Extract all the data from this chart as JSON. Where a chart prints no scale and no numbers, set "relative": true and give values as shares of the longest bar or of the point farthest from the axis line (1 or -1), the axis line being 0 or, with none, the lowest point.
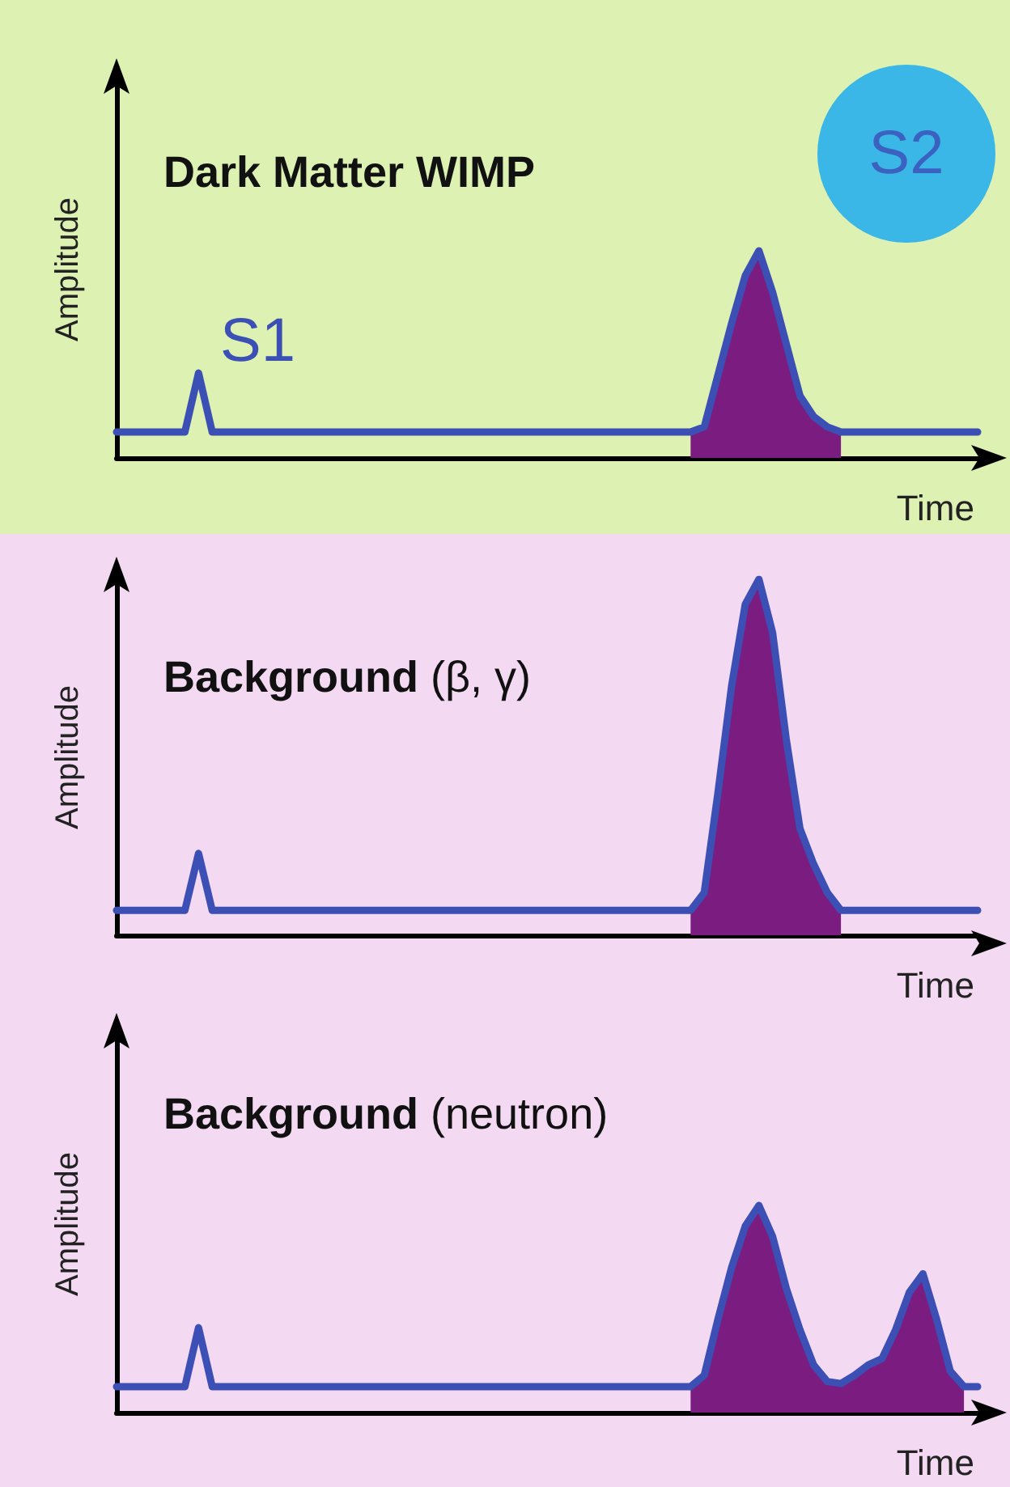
{
  "chart_data": [
    {
      "type": "line",
      "relative": true,
      "title": "Dark Matter WIMP",
      "xlabel": "Time",
      "ylabel": "Amplitude",
      "annotations": [
        "S1",
        "S2"
      ],
      "categories": [
        null,
        null,
        null,
        null,
        null,
        null,
        null,
        null,
        null,
        null,
        null,
        null,
        null,
        null,
        null,
        null,
        null,
        null,
        null,
        null,
        null,
        null,
        null,
        null,
        null,
        null,
        null,
        null,
        null,
        null,
        null,
        null,
        null,
        null,
        null,
        null,
        null,
        null,
        null,
        null,
        null,
        null,
        null,
        null,
        null,
        null,
        null,
        null,
        null,
        null,
        null,
        null,
        null,
        null,
        null,
        null,
        null,
        null,
        null,
        null,
        null,
        null,
        null,
        null
      ],
      "series": [
        {
          "type": "area",
          "color": "#7b1d80",
          "values": [
            null,
            null,
            null,
            null,
            null,
            null,
            null,
            null,
            null,
            null,
            null,
            null,
            null,
            null,
            null,
            null,
            null,
            null,
            null,
            null,
            null,
            null,
            null,
            null,
            null,
            null,
            null,
            null,
            null,
            null,
            null,
            null,
            null,
            null,
            null,
            null,
            null,
            null,
            null,
            null,
            null,
            null,
            0.125,
            0.15,
            0.4,
            0.65,
            0.88,
            1,
            0.8,
            0.55,
            0.3,
            0.2,
            0.15,
            0.125,
            null,
            null,
            null,
            null,
            null,
            null,
            null,
            null,
            null,
            null
          ]
        },
        {
          "color": "#3c4fb4",
          "values": [
            0.125,
            0.125,
            0.125,
            0.125,
            0.125,
            0.125,
            0.41,
            0.125,
            0.125,
            0.125,
            0.125,
            0.125,
            0.125,
            0.125,
            0.125,
            0.125,
            0.125,
            0.125,
            0.125,
            0.125,
            0.125,
            0.125,
            0.125,
            0.125,
            0.125,
            0.125,
            0.125,
            0.125,
            0.125,
            0.125,
            0.125,
            0.125,
            0.125,
            0.125,
            0.125,
            0.125,
            0.125,
            0.125,
            0.125,
            0.125,
            0.125,
            0.125,
            0.125,
            0.15,
            0.4,
            0.65,
            0.88,
            1,
            0.8,
            0.55,
            0.3,
            0.2,
            0.15,
            0.125,
            0.125,
            0.125,
            0.125,
            0.125,
            0.125,
            0.125,
            0.125,
            0.125,
            0.125,
            0.125
          ]
        }
      ]
    },
    {
      "type": "line",
      "relative": true,
      "title": "Background (β, γ)",
      "xlabel": "Time",
      "ylabel": "Amplitude",
      "categories": [
        null,
        null,
        null,
        null,
        null,
        null,
        null,
        null,
        null,
        null,
        null,
        null,
        null,
        null,
        null,
        null,
        null,
        null,
        null,
        null,
        null,
        null,
        null,
        null,
        null,
        null,
        null,
        null,
        null,
        null,
        null,
        null,
        null,
        null,
        null,
        null,
        null,
        null,
        null,
        null,
        null,
        null,
        null,
        null,
        null,
        null,
        null,
        null,
        null,
        null,
        null,
        null,
        null,
        null,
        null,
        null,
        null,
        null,
        null,
        null,
        null,
        null,
        null,
        null
      ],
      "series": [
        {
          "type": "area",
          "color": "#7b1d80",
          "values": [
            null,
            null,
            null,
            null,
            null,
            null,
            null,
            null,
            null,
            null,
            null,
            null,
            null,
            null,
            null,
            null,
            null,
            null,
            null,
            null,
            null,
            null,
            null,
            null,
            null,
            null,
            null,
            null,
            null,
            null,
            null,
            null,
            null,
            null,
            null,
            null,
            null,
            null,
            null,
            null,
            null,
            null,
            0.07,
            0.12,
            0.4,
            0.7,
            0.93,
            1,
            0.85,
            0.55,
            0.3,
            0.2,
            0.12,
            0.07,
            null,
            null,
            null,
            null,
            null,
            null,
            null,
            null,
            null,
            null
          ]
        },
        {
          "color": "#3c4fb4",
          "values": [
            0.07,
            0.07,
            0.07,
            0.07,
            0.07,
            0.07,
            0.23,
            0.07,
            0.07,
            0.07,
            0.07,
            0.07,
            0.07,
            0.07,
            0.07,
            0.07,
            0.07,
            0.07,
            0.07,
            0.07,
            0.07,
            0.07,
            0.07,
            0.07,
            0.07,
            0.07,
            0.07,
            0.07,
            0.07,
            0.07,
            0.07,
            0.07,
            0.07,
            0.07,
            0.07,
            0.07,
            0.07,
            0.07,
            0.07,
            0.07,
            0.07,
            0.07,
            0.07,
            0.12,
            0.4,
            0.7,
            0.93,
            1,
            0.85,
            0.55,
            0.3,
            0.2,
            0.12,
            0.07,
            0.07,
            0.07,
            0.07,
            0.07,
            0.07,
            0.07,
            0.07,
            0.07,
            0.07,
            0.07
          ]
        }
      ]
    },
    {
      "type": "line",
      "relative": true,
      "title": "Background (neutron)",
      "xlabel": "Time",
      "ylabel": "Amplitude",
      "categories": [
        null,
        null,
        null,
        null,
        null,
        null,
        null,
        null,
        null,
        null,
        null,
        null,
        null,
        null,
        null,
        null,
        null,
        null,
        null,
        null,
        null,
        null,
        null,
        null,
        null,
        null,
        null,
        null,
        null,
        null,
        null,
        null,
        null,
        null,
        null,
        null,
        null,
        null,
        null,
        null,
        null,
        null,
        null,
        null,
        null,
        null,
        null,
        null,
        null,
        null,
        null,
        null,
        null,
        null,
        null,
        null,
        null,
        null,
        null,
        null,
        null,
        null,
        null,
        null
      ],
      "series": [
        {
          "type": "area",
          "color": "#7b1d80",
          "values": [
            null,
            null,
            null,
            null,
            null,
            null,
            null,
            null,
            null,
            null,
            null,
            null,
            null,
            null,
            null,
            null,
            null,
            null,
            null,
            null,
            null,
            null,
            null,
            null,
            null,
            null,
            null,
            null,
            null,
            null,
            null,
            null,
            null,
            null,
            null,
            null,
            null,
            null,
            null,
            null,
            null,
            null,
            0.125,
            0.18,
            0.45,
            0.7,
            0.9,
            1,
            0.85,
            0.6,
            0.4,
            0.23,
            0.15,
            0.14,
            0.18,
            0.23,
            0.26,
            0.4,
            0.58,
            0.67,
            0.45,
            0.2,
            0.125,
            null
          ]
        },
        {
          "color": "#3c4fb4",
          "values": [
            0.125,
            0.125,
            0.125,
            0.125,
            0.125,
            0.125,
            0.41,
            0.125,
            0.125,
            0.125,
            0.125,
            0.125,
            0.125,
            0.125,
            0.125,
            0.125,
            0.125,
            0.125,
            0.125,
            0.125,
            0.125,
            0.125,
            0.125,
            0.125,
            0.125,
            0.125,
            0.125,
            0.125,
            0.125,
            0.125,
            0.125,
            0.125,
            0.125,
            0.125,
            0.125,
            0.125,
            0.125,
            0.125,
            0.125,
            0.125,
            0.125,
            0.125,
            0.125,
            0.18,
            0.45,
            0.7,
            0.9,
            1,
            0.85,
            0.6,
            0.4,
            0.23,
            0.15,
            0.14,
            0.18,
            0.23,
            0.26,
            0.4,
            0.58,
            0.67,
            0.45,
            0.2,
            0.125,
            0.125
          ]
        }
      ]
    }
  ]
}
